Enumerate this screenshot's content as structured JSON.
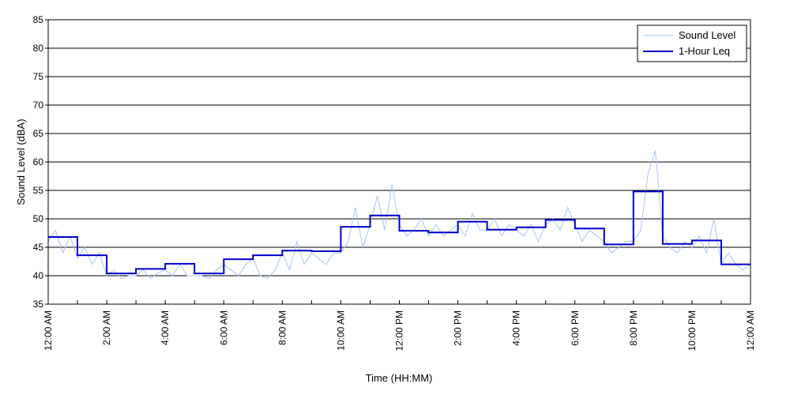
{
  "chart_data": {
    "type": "line",
    "title": "",
    "xlabel": "Time (HH:MM)",
    "ylabel": "Sound Level (dBA)",
    "ylim": [
      35,
      85
    ],
    "xlim": [
      0,
      24
    ],
    "y_ticks": [
      35,
      40,
      45,
      50,
      55,
      60,
      65,
      70,
      75,
      80,
      85
    ],
    "x_ticks": [
      {
        "hour": 0,
        "label": "12:00 AM"
      },
      {
        "hour": 2,
        "label": "2:00 AM"
      },
      {
        "hour": 4,
        "label": "4:00 AM"
      },
      {
        "hour": 6,
        "label": "6:00 AM"
      },
      {
        "hour": 8,
        "label": "8:00 AM"
      },
      {
        "hour": 10,
        "label": "10:00 AM"
      },
      {
        "hour": 12,
        "label": "12:00 PM"
      },
      {
        "hour": 14,
        "label": "2:00 PM"
      },
      {
        "hour": 16,
        "label": "4:00 PM"
      },
      {
        "hour": 18,
        "label": "6:00 PM"
      },
      {
        "hour": 20,
        "label": "8:00 PM"
      },
      {
        "hour": 22,
        "label": "10:00 PM"
      },
      {
        "hour": 24,
        "label": "12:00 AM"
      }
    ],
    "grid": true,
    "legend_position": "top-right",
    "series": [
      {
        "name": "Sound Level",
        "color": "#a8c4f4",
        "style": "thin-line",
        "x": [
          0.0,
          0.25,
          0.5,
          0.75,
          1.0,
          1.25,
          1.5,
          1.75,
          2.0,
          2.25,
          2.5,
          2.75,
          3.0,
          3.25,
          3.5,
          3.75,
          4.0,
          4.25,
          4.5,
          4.75,
          5.0,
          5.25,
          5.5,
          5.75,
          6.0,
          6.25,
          6.5,
          6.75,
          7.0,
          7.25,
          7.5,
          7.75,
          8.0,
          8.25,
          8.5,
          8.75,
          9.0,
          9.25,
          9.5,
          9.75,
          10.0,
          10.25,
          10.5,
          10.75,
          11.0,
          11.25,
          11.5,
          11.75,
          12.0,
          12.25,
          12.5,
          12.75,
          13.0,
          13.25,
          13.5,
          13.75,
          14.0,
          14.25,
          14.5,
          14.75,
          15.0,
          15.25,
          15.5,
          15.75,
          16.0,
          16.25,
          16.5,
          16.75,
          17.0,
          17.25,
          17.5,
          17.75,
          18.0,
          18.25,
          18.5,
          18.75,
          19.0,
          19.25,
          19.5,
          19.75,
          20.0,
          20.25,
          20.5,
          20.75,
          21.0,
          21.25,
          21.5,
          21.75,
          22.0,
          22.25,
          22.5,
          22.75,
          23.0,
          23.25,
          23.5,
          23.75,
          24.0
        ],
        "values": [
          46,
          48,
          44,
          47,
          43,
          45,
          42,
          44,
          40,
          41,
          39.5,
          40,
          40,
          41,
          39.5,
          40.5,
          41,
          40,
          42,
          40,
          40,
          40,
          39.5,
          41,
          42,
          41,
          40,
          42,
          43,
          40,
          39.5,
          41,
          44,
          41,
          46,
          42,
          44,
          43,
          42,
          44,
          44,
          46,
          52,
          45,
          49,
          54,
          48,
          56,
          49,
          47,
          48,
          50,
          47,
          49,
          47,
          48,
          49,
          47,
          51,
          48,
          48,
          50,
          47,
          49,
          48,
          47,
          49,
          46,
          49,
          50,
          48,
          52,
          49,
          46,
          48,
          47,
          46,
          44,
          45,
          46,
          46,
          48,
          58,
          62,
          47,
          45,
          44,
          46,
          45,
          47,
          44,
          50,
          42,
          44,
          42,
          41,
          42
        ]
      },
      {
        "name": "1-Hour Leq",
        "color": "#0000cc",
        "style": "step",
        "hours": [
          0,
          1,
          2,
          3,
          4,
          5,
          6,
          7,
          8,
          9,
          10,
          11,
          12,
          13,
          14,
          15,
          16,
          17,
          18,
          19,
          20,
          21,
          22,
          23
        ],
        "values": [
          46.8,
          43.6,
          40.4,
          41.2,
          42.1,
          40.4,
          42.9,
          43.6,
          44.4,
          44.3,
          48.6,
          50.6,
          47.9,
          47.6,
          49.5,
          48.1,
          48.5,
          49.8,
          48.3,
          45.5,
          54.8,
          45.6,
          46.2,
          42.0
        ]
      }
    ]
  }
}
